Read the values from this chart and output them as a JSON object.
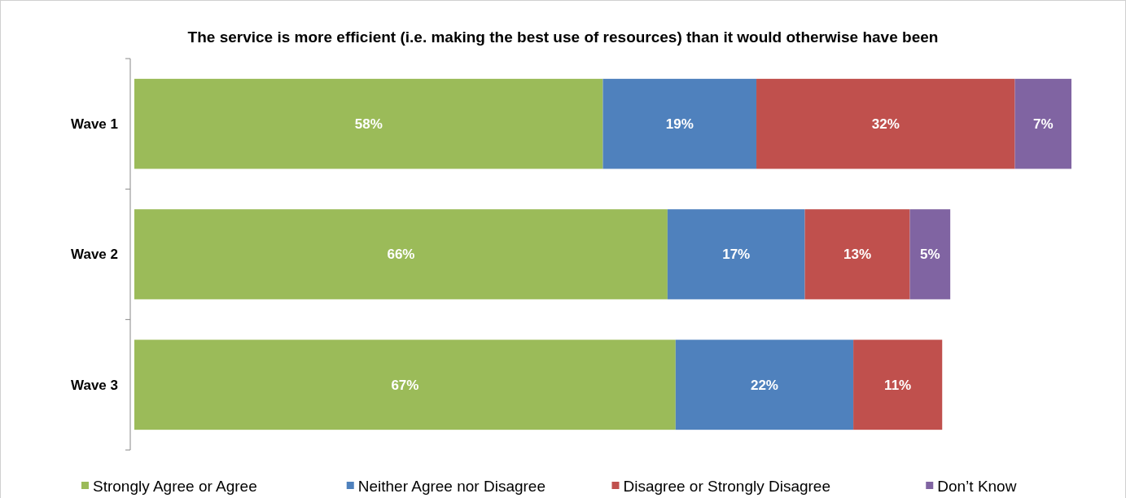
{
  "chart_data": {
    "type": "bar",
    "orientation": "horizontal",
    "stacked": true,
    "title": "The service is more efficient (i.e. making the best use of resources) than it would otherwise have been",
    "categories": [
      "Wave 1",
      "Wave 2",
      "Wave 3"
    ],
    "series": [
      {
        "name": "Strongly Agree or Agree",
        "color": "#9bbb59",
        "values": [
          58,
          66,
          67
        ],
        "value_labels": [
          "58%",
          "66%",
          "67%"
        ]
      },
      {
        "name": "Neither Agree nor Disagree",
        "color": "#4f81bd",
        "values": [
          19,
          17,
          22
        ],
        "value_labels": [
          "19%",
          "17%",
          "22%"
        ]
      },
      {
        "name": "Disagree or Strongly Disagree",
        "color": "#c0504d",
        "values": [
          32,
          13,
          11
        ],
        "value_labels": [
          "32%",
          "13%",
          "11%"
        ]
      },
      {
        "name": "Don’t Know",
        "color": "#8064a2",
        "values": [
          7,
          5,
          null
        ],
        "value_labels": [
          "7%",
          "5%",
          null
        ]
      }
    ],
    "legend": "bottom"
  }
}
